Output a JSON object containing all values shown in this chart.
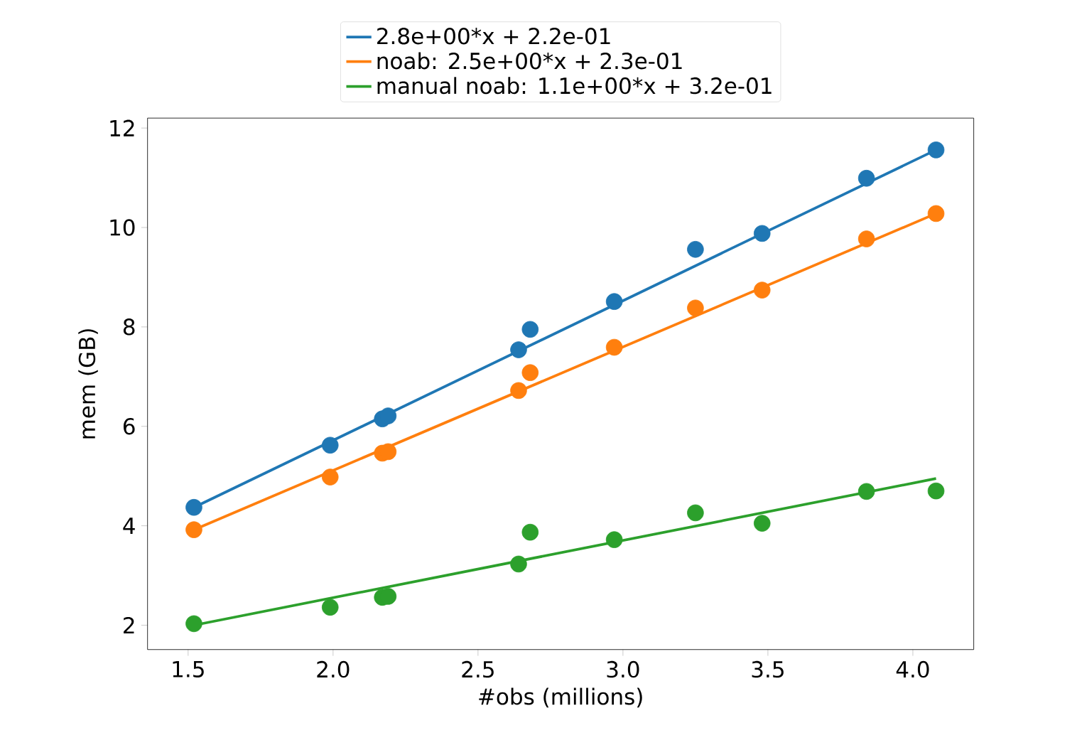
{
  "chart_data": {
    "type": "scatter",
    "xlabel": "#obs (millions)",
    "ylabel": "mem (GB)",
    "xlim": [
      1.36,
      4.21
    ],
    "ylim": [
      1.51,
      12.2
    ],
    "xticks": [
      1.5,
      {
        "value": 2,
        "label": "2.0"
      },
      2.5,
      {
        "value": 3,
        "label": "3.0"
      },
      3.5,
      {
        "value": 4,
        "label": "4.0"
      }
    ],
    "yticks": [
      2,
      4,
      6,
      8,
      10,
      12
    ],
    "legend": "top",
    "grid": false,
    "series": [
      {
        "type": "line",
        "name": "2.8e+00*x + 2.2e-01",
        "color": "#1f77b4",
        "marker": "none",
        "x": [
          1.52,
          4.08
        ],
        "values": [
          4.37,
          11.56
        ]
      },
      {
        "type": "line",
        "name": "noab: 2.5e+00*x + 2.3e-01",
        "color": "#ff7f0e",
        "marker": "none",
        "x": [
          1.52,
          4.08
        ],
        "values": [
          3.92,
          10.28
        ]
      },
      {
        "type": "line",
        "name": "manual noab: 1.1e+00*x + 3.2e-01",
        "color": "#2ca02c",
        "marker": "none",
        "x": [
          1.52,
          4.08
        ],
        "values": [
          2.0,
          4.95
        ]
      },
      {
        "color": "#1f77b4",
        "marker": "circle",
        "x": [
          1.52,
          1.99,
          2.17,
          2.19,
          2.64,
          2.68,
          2.97,
          3.25,
          3.48,
          3.84,
          4.08
        ],
        "values": [
          4.37,
          5.62,
          6.15,
          6.21,
          7.54,
          7.95,
          8.51,
          9.56,
          9.88,
          10.99,
          11.56
        ]
      },
      {
        "color": "#ff7f0e",
        "marker": "circle",
        "x": [
          1.52,
          1.99,
          2.17,
          2.19,
          2.64,
          2.68,
          2.97,
          3.25,
          3.48,
          3.84,
          4.08
        ],
        "values": [
          3.92,
          4.98,
          5.46,
          5.49,
          6.72,
          7.08,
          7.59,
          8.38,
          8.74,
          9.77,
          10.28
        ]
      },
      {
        "color": "#2ca02c",
        "marker": "circle",
        "x": [
          1.52,
          1.99,
          2.17,
          2.19,
          2.64,
          2.68,
          2.97,
          3.25,
          3.48,
          3.84,
          4.08
        ],
        "values": [
          2.03,
          2.36,
          2.56,
          2.58,
          3.23,
          3.87,
          3.72,
          4.26,
          4.05,
          4.69,
          4.7
        ]
      }
    ]
  }
}
